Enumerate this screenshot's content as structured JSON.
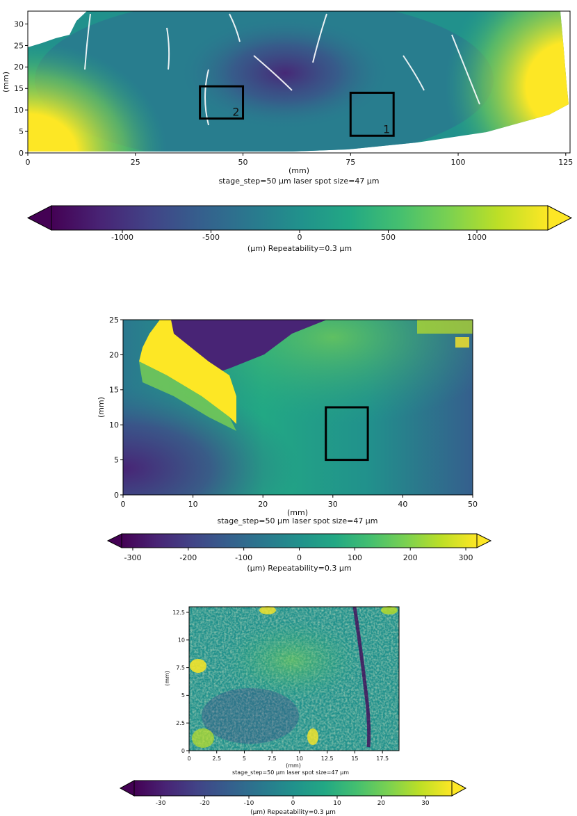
{
  "colors": {
    "viridis": [
      "#440154",
      "#482475",
      "#414487",
      "#355f8d",
      "#2a788e",
      "#21918c",
      "#22a884",
      "#44bf70",
      "#7ad151",
      "#bddf26",
      "#fde725"
    ],
    "frame": "#000000",
    "background": "#ffffff"
  },
  "chart_data": [
    {
      "type": "heatmap",
      "panel": "top",
      "xlabel": "(mm)",
      "ylabel": "(mm)",
      "subtitle": "stage_step=50 μm laser spot size=47 μm",
      "xlim": [
        0,
        126
      ],
      "ylim": [
        0,
        33
      ],
      "xticks": [
        0,
        25,
        50,
        75,
        100,
        125
      ],
      "yticks": [
        0,
        5,
        10,
        15,
        20,
        25,
        30
      ],
      "regions": [
        {
          "label": "1",
          "x": [
            75,
            85
          ],
          "y": [
            4,
            14
          ]
        },
        {
          "label": "2",
          "x": [
            40,
            50
          ],
          "y": [
            8,
            15.5
          ]
        }
      ],
      "colorbar": {
        "label": "(μm) Repeatability=0.3 μm",
        "range": [
          -1400,
          1400
        ],
        "ticks": [
          -1000,
          -500,
          0,
          500,
          1000
        ],
        "extend": "both"
      }
    },
    {
      "type": "heatmap",
      "panel": "middle",
      "xlabel": "(mm)",
      "ylabel": "(mm)",
      "subtitle": "stage_step=50 μm laser spot size=47 μm",
      "xlim": [
        0,
        50
      ],
      "ylim": [
        0,
        25
      ],
      "xticks": [
        0,
        10,
        20,
        30,
        40,
        50
      ],
      "yticks": [
        0,
        5,
        10,
        15,
        20,
        25
      ],
      "regions": [
        {
          "label": "",
          "x": [
            29,
            35
          ],
          "y": [
            5,
            12.5
          ]
        }
      ],
      "colorbar": {
        "label": "(μm) Repeatability=0.3 μm",
        "range": [
          -320,
          320
        ],
        "ticks": [
          -300,
          -200,
          -100,
          0,
          100,
          200,
          300
        ],
        "extend": "both"
      }
    },
    {
      "type": "heatmap",
      "panel": "bottom",
      "xlabel": "(mm)",
      "ylabel": "(mm)",
      "subtitle": "stage_step=50 μm laser spot size=47 μm",
      "xlim": [
        0,
        19
      ],
      "ylim": [
        0,
        13
      ],
      "xticks": [
        0,
        2.5,
        5,
        7.5,
        10,
        12.5,
        15,
        17.5
      ],
      "xtick_labels": [
        "0",
        "2.5",
        "5",
        "7.5",
        "10",
        "12.5",
        "15",
        "17.5"
      ],
      "yticks": [
        0,
        2.5,
        5,
        7.5,
        10,
        12.5
      ],
      "ytick_labels": [
        "0",
        "2.5",
        "5",
        "7.5",
        "10",
        "12.5"
      ],
      "regions": [],
      "colorbar": {
        "label": "(μm) Repeatability=0.3 μm",
        "range": [
          -36,
          36
        ],
        "ticks": [
          -30,
          -20,
          -10,
          0,
          10,
          20,
          30
        ],
        "extend": "both"
      }
    }
  ]
}
